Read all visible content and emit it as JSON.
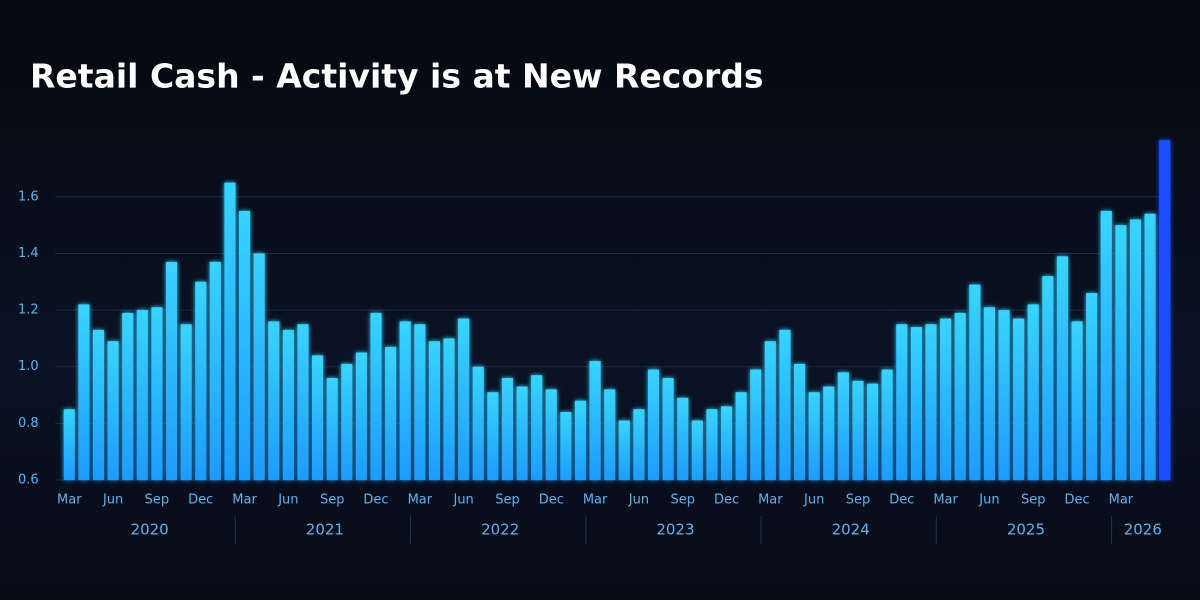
{
  "chart_data": {
    "type": "bar",
    "title": "Retail Cash - Activity is at New Records",
    "categories": [
      "Mar",
      null,
      null,
      "Jun",
      null,
      null,
      "Sep",
      null,
      null,
      "Dec",
      null,
      null,
      "Mar",
      null,
      null,
      "Jun",
      null,
      null,
      "Sep",
      null,
      null,
      "Dec",
      null,
      null,
      "Mar",
      null,
      null,
      "Jun",
      null,
      null,
      "Sep",
      null,
      null,
      "Dec",
      null,
      null,
      "Mar",
      null,
      null,
      "Jun",
      null,
      null,
      "Sep",
      null,
      null,
      "Dec",
      null,
      null,
      "Mar",
      null,
      null,
      "Jun",
      null,
      null,
      "Sep",
      null,
      null,
      "Dec",
      null,
      null,
      "Mar",
      null,
      null,
      "Jun",
      null,
      null,
      "Sep",
      null,
      null,
      "Dec",
      null,
      null,
      "Mar",
      null,
      null,
      null
    ],
    "years": [
      "2020",
      "2021",
      "2022",
      "2023",
      "2024",
      "2025",
      "2026"
    ],
    "values": [
      0.85,
      1.22,
      1.13,
      1.09,
      1.19,
      1.2,
      1.21,
      1.37,
      1.15,
      1.3,
      1.37,
      1.65,
      1.55,
      1.4,
      1.16,
      1.13,
      1.15,
      1.04,
      0.96,
      1.01,
      1.05,
      1.19,
      1.07,
      1.16,
      1.15,
      1.09,
      1.1,
      1.17,
      1.0,
      0.91,
      0.96,
      0.93,
      0.97,
      0.92,
      0.84,
      0.88,
      1.02,
      0.92,
      0.81,
      0.85,
      0.99,
      0.96,
      0.89,
      0.81,
      0.85,
      0.86,
      0.91,
      0.99,
      1.09,
      1.13,
      1.01,
      0.91,
      0.93,
      0.98,
      0.95,
      0.94,
      0.99,
      1.15,
      1.14,
      1.15,
      1.17,
      1.19,
      1.29,
      1.21,
      1.2,
      1.17,
      1.22,
      1.32,
      1.39,
      1.16,
      1.26,
      1.55,
      1.5,
      1.52,
      1.54,
      1.8
    ],
    "color": "#1e9bff",
    "last_color": "#1f4dff",
    "ylim": [
      0.6,
      1.85
    ],
    "yticks": [
      0.6,
      0.8,
      {
        "value": 1,
        "label": "1.0"
      },
      1.2,
      1.4,
      1.6
    ],
    "grid": true
  }
}
